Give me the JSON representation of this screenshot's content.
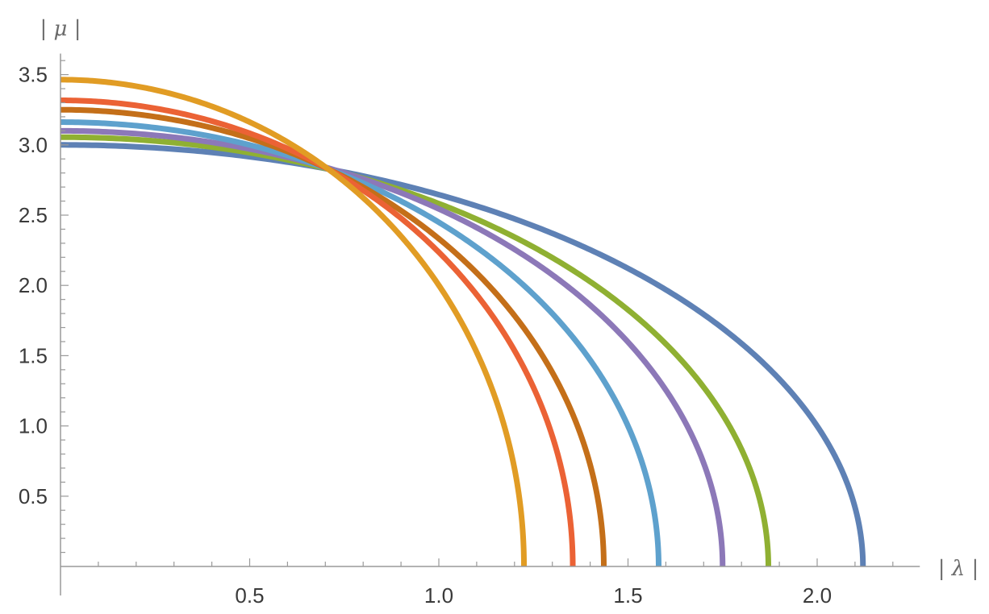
{
  "chart_data": {
    "type": "line",
    "title": "",
    "xlabel": "| λ |",
    "ylabel": "| μ |",
    "xlim": [
      0,
      2.25
    ],
    "ylim": [
      0,
      3.65
    ],
    "x_ticks": [
      0.5,
      1.0,
      1.5,
      2.0
    ],
    "x_tick_labels": [
      "0.5",
      "1.0",
      "1.5",
      "2.0"
    ],
    "y_ticks": [
      0.5,
      1.0,
      1.5,
      2.0,
      2.5,
      3.0,
      3.5
    ],
    "y_tick_labels": [
      "0.5",
      "1.0",
      "1.5",
      "2.0",
      "2.5",
      "3.0",
      "3.5"
    ],
    "grid": false,
    "legend": "none",
    "series": [
      {
        "color": "#5E81B5",
        "x_intercept": 2.121,
        "y_intercept": 3.0
      },
      {
        "color": "#8FB032",
        "x_intercept": 1.871,
        "y_intercept": 3.055
      },
      {
        "color": "#8C78B8",
        "x_intercept": 1.75,
        "y_intercept": 3.1
      },
      {
        "color": "#5EA1CD",
        "x_intercept": 1.581,
        "y_intercept": 3.162
      },
      {
        "color": "#C46F19",
        "x_intercept": 1.436,
        "y_intercept": 3.25
      },
      {
        "color": "#EB6235",
        "x_intercept": 1.354,
        "y_intercept": 3.317
      },
      {
        "color": "#E19C24",
        "x_intercept": 1.225,
        "y_intercept": 3.464
      }
    ]
  }
}
